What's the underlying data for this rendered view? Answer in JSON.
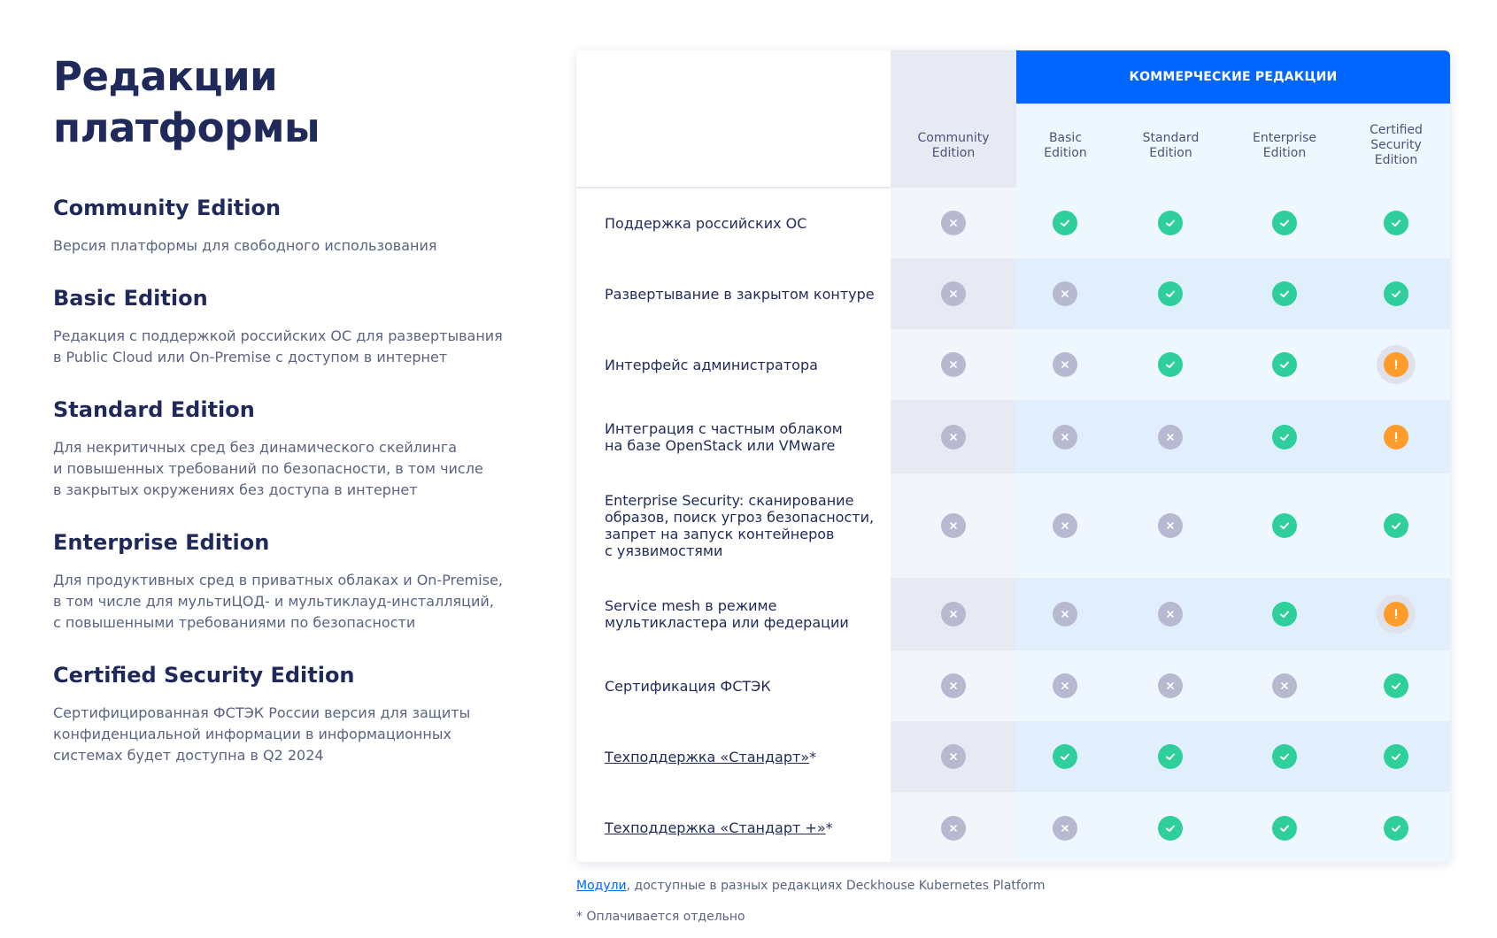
{
  "page": {
    "title_line1": "Редакции",
    "title_line2": "платформы"
  },
  "editions": [
    {
      "title": "Community Edition",
      "desc": "Версия платформы для свободного использования"
    },
    {
      "title": "Basic Edition",
      "desc": "Редакция с поддержкой российских ОС для развертывания\nв Public Cloud или On-Premise с доступом в интернет"
    },
    {
      "title": "Standard Edition",
      "desc": "Для некритичных сред без динамического скейлинга\nи повышенных требований по безопасности, в том числе\nв закрытых окружениях без доступа в интернет"
    },
    {
      "title": "Enterprise Edition",
      "desc": "Для продуктивных сред в приватных облаках и On-Premise,\nв том числе для мультиЦОД- и мультиклауд-инсталляций,\nс повышенными требованиями по безопасности"
    },
    {
      "title": "Certified Security Edition",
      "desc": "Сертифицированная ФСТЭК России версия для защиты\nконфиденциальной информации в информационных\nсистемах будет доступна в Q2 2024"
    }
  ],
  "table": {
    "commercial_header": "КОММЕРЧЕСКИЕ РЕДАКЦИИ",
    "columns": [
      "Community\nEdition",
      "Basic\nEdition",
      "Standard\nEdition",
      "Enterprise\nEdition",
      "Certified\nSecurity\nEdition"
    ],
    "rows": [
      {
        "label": "Поддержка российских ОС",
        "link": false,
        "suffix": "",
        "values": [
          "no",
          "yes",
          "yes",
          "yes",
          "yes"
        ]
      },
      {
        "label": "Развертывание в закрытом контуре",
        "link": false,
        "suffix": "",
        "values": [
          "no",
          "no",
          "yes",
          "yes",
          "yes"
        ]
      },
      {
        "label": "Интерфейс администратора",
        "link": false,
        "suffix": "",
        "values": [
          "no",
          "no",
          "yes",
          "yes",
          "warn-halo"
        ]
      },
      {
        "label": "Интеграция с частным облаком\nна базе OpenStack или VMware",
        "link": false,
        "suffix": "",
        "values": [
          "no",
          "no",
          "no",
          "yes",
          "warn"
        ]
      },
      {
        "label": "Enterprise Security: сканирование\nобразов, поиск угроз безопасности,\nзапрет на запуск контейнеров\nс уязвимостями",
        "link": false,
        "suffix": "",
        "values": [
          "no",
          "no",
          "no",
          "yes",
          "yes"
        ]
      },
      {
        "label": "Service mesh в режиме\nмультикластера или федерации",
        "link": false,
        "suffix": "",
        "values": [
          "no",
          "no",
          "no",
          "yes",
          "warn-halo"
        ]
      },
      {
        "label": "Сертификация ФСТЭК",
        "link": false,
        "suffix": "",
        "values": [
          "no",
          "no",
          "no",
          "no",
          "yes"
        ]
      },
      {
        "label": "Техподдержка «Стандарт»",
        "link": true,
        "suffix": " *",
        "values": [
          "no",
          "yes",
          "yes",
          "yes",
          "yes"
        ]
      },
      {
        "label": "Техподдержка «Стандарт +»",
        "link": true,
        "suffix": " *",
        "values": [
          "no",
          "no",
          "yes",
          "yes",
          "yes"
        ]
      }
    ]
  },
  "footer": {
    "modules_link": "Модули",
    "modules_text": ", доступные в разных редакциях Deckhouse Kubernetes Platform",
    "note": "* Оплачивается отдельно"
  },
  "colors": {
    "accent": "#0066ff",
    "yes": "#2fcf9c",
    "no": "#b7b9d0",
    "warn": "#ff9c2a",
    "title": "#1f2a5a"
  },
  "icons": {
    "yes": "check-icon",
    "no": "cross-icon",
    "warn": "exclamation-icon"
  }
}
